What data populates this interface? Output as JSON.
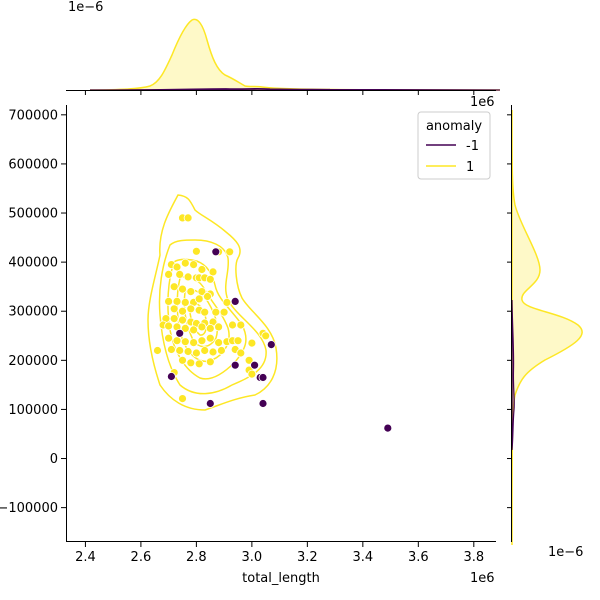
{
  "chart_data": {
    "type": "scatter",
    "xlabel": "total_length",
    "ylabel": "",
    "x_offset_label": "1e6",
    "y_offset_label": "1e6",
    "top_marginal_offset_label": "1e−6",
    "right_marginal_offset_label": "1e−6",
    "xlim": [
      2330000,
      3880000
    ],
    "ylim": [
      -170000,
      720000
    ],
    "x_ticks": [
      2400000,
      2600000,
      2800000,
      3000000,
      3200000,
      3400000,
      3600000,
      3800000
    ],
    "x_tick_labels": [
      "2.4",
      "2.6",
      "2.8",
      "3.0",
      "3.2",
      "3.4",
      "3.6",
      "3.8"
    ],
    "y_ticks": [
      -100000,
      0,
      100000,
      200000,
      300000,
      400000,
      500000,
      600000,
      700000
    ],
    "y_tick_labels": [
      "−100000",
      "0",
      "100000",
      "200000",
      "300000",
      "400000",
      "500000",
      "600000",
      "700000"
    ],
    "grid": false,
    "legend": {
      "title": "anomaly",
      "placement": "top-right",
      "entries": [
        {
          "label": "-1",
          "color": "#440154"
        },
        {
          "label": "1",
          "color": "#fde725"
        }
      ]
    },
    "series": [
      {
        "name": "-1",
        "color": "#440154",
        "points": [
          [
            2870000,
            421000
          ],
          [
            2940000,
            320000
          ],
          [
            2740000,
            255000
          ],
          [
            3070000,
            232000
          ],
          [
            2710000,
            167000
          ],
          [
            2940000,
            190000
          ],
          [
            3010000,
            190000
          ],
          [
            3030000,
            165000
          ],
          [
            3040000,
            165000
          ],
          [
            2850000,
            112000
          ],
          [
            3040000,
            112000
          ],
          [
            3490000,
            62000
          ]
        ]
      },
      {
        "name": "1",
        "color": "#fde725",
        "points": [
          [
            2750000,
            490000
          ],
          [
            2770000,
            490000
          ],
          [
            2800000,
            422000
          ],
          [
            2880000,
            421000
          ],
          [
            2920000,
            421000
          ],
          [
            2710000,
            395000
          ],
          [
            2730000,
            390000
          ],
          [
            2760000,
            398000
          ],
          [
            2790000,
            395000
          ],
          [
            2820000,
            385000
          ],
          [
            2860000,
            380000
          ],
          [
            2700000,
            375000
          ],
          [
            2740000,
            375000
          ],
          [
            2770000,
            370000
          ],
          [
            2800000,
            368000
          ],
          [
            2810000,
            368000
          ],
          [
            2830000,
            368000
          ],
          [
            2850000,
            365000
          ],
          [
            2720000,
            350000
          ],
          [
            2750000,
            345000
          ],
          [
            2780000,
            340000
          ],
          [
            2820000,
            340000
          ],
          [
            2850000,
            335000
          ],
          [
            2700000,
            320000
          ],
          [
            2730000,
            320000
          ],
          [
            2760000,
            318000
          ],
          [
            2790000,
            318000
          ],
          [
            2810000,
            325000
          ],
          [
            2840000,
            330000
          ],
          [
            2910000,
            318000
          ],
          [
            2720000,
            305000
          ],
          [
            2750000,
            300000
          ],
          [
            2780000,
            305000
          ],
          [
            2810000,
            302000
          ],
          [
            2830000,
            298000
          ],
          [
            2870000,
            298000
          ],
          [
            2900000,
            298000
          ],
          [
            2690000,
            285000
          ],
          [
            2720000,
            285000
          ],
          [
            2750000,
            282000
          ],
          [
            2780000,
            278000
          ],
          [
            2800000,
            275000
          ],
          [
            2830000,
            276000
          ],
          [
            2860000,
            278000
          ],
          [
            2680000,
            272000
          ],
          [
            2700000,
            270000
          ],
          [
            2730000,
            268000
          ],
          [
            2760000,
            265000
          ],
          [
            2790000,
            262000
          ],
          [
            2820000,
            268000
          ],
          [
            2850000,
            265000
          ],
          [
            2880000,
            268000
          ],
          [
            2930000,
            272000
          ],
          [
            2960000,
            272000
          ],
          [
            3040000,
            255000
          ],
          [
            3050000,
            250000
          ],
          [
            2700000,
            245000
          ],
          [
            2730000,
            240000
          ],
          [
            2760000,
            238000
          ],
          [
            2790000,
            236000
          ],
          [
            2820000,
            240000
          ],
          [
            2850000,
            245000
          ],
          [
            2880000,
            236000
          ],
          [
            2910000,
            238000
          ],
          [
            2930000,
            240000
          ],
          [
            2950000,
            240000
          ],
          [
            3000000,
            235000
          ],
          [
            2660000,
            220000
          ],
          [
            2710000,
            222000
          ],
          [
            2740000,
            220000
          ],
          [
            2770000,
            218000
          ],
          [
            2800000,
            215000
          ],
          [
            2830000,
            220000
          ],
          [
            2860000,
            217000
          ],
          [
            2890000,
            220000
          ],
          [
            2940000,
            222000
          ],
          [
            2960000,
            215000
          ],
          [
            2990000,
            200000
          ],
          [
            2750000,
            200000
          ],
          [
            2780000,
            195000
          ],
          [
            2810000,
            193000
          ],
          [
            2850000,
            197000
          ],
          [
            2720000,
            175000
          ],
          [
            2990000,
            180000
          ],
          [
            3000000,
            172000
          ],
          [
            2750000,
            122000
          ]
        ]
      }
    ],
    "top_marginal": {
      "description_units": "kde over x",
      "series": [
        {
          "name": "1",
          "color": "#fde725"
        },
        {
          "name": "-1",
          "color": "#440154"
        }
      ]
    },
    "right_marginal": {
      "description_units": "kde over y",
      "series": [
        {
          "name": "1",
          "color": "#fde725"
        },
        {
          "name": "-1",
          "color": "#440154"
        }
      ]
    }
  }
}
